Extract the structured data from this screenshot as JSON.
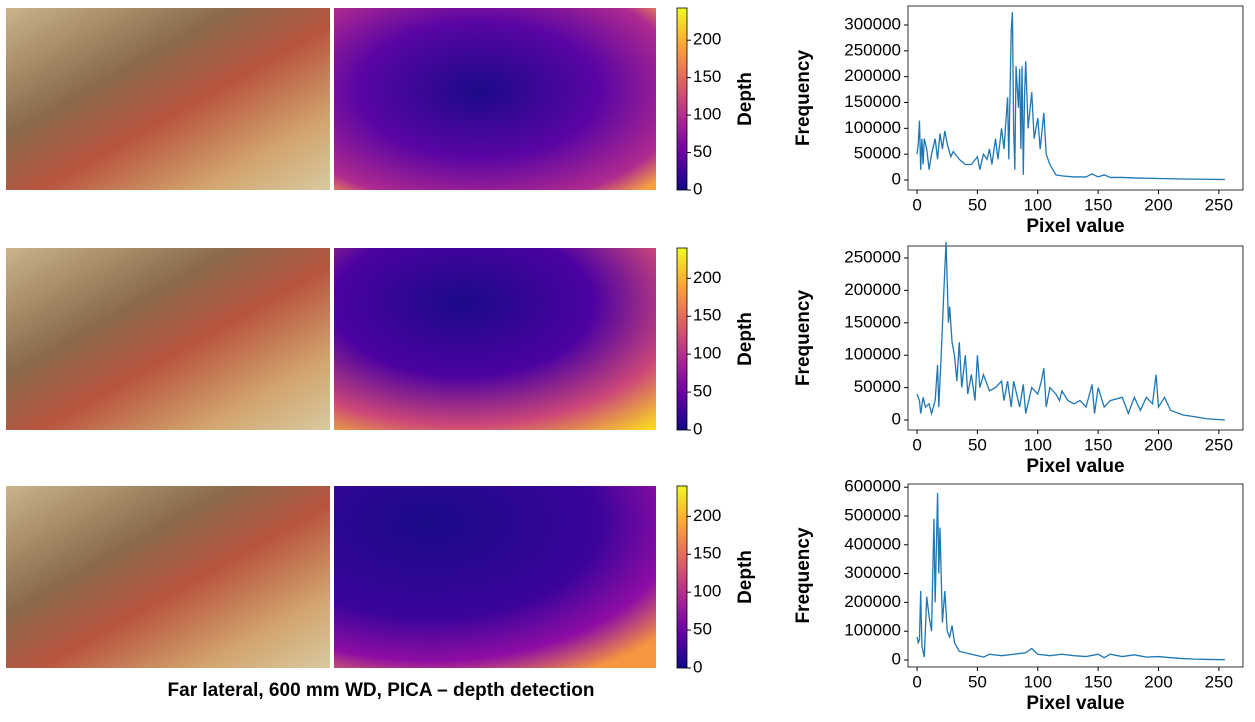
{
  "caption": "Far lateral, 600 mm WD, PICA – depth detection",
  "chart_data": [
    {
      "type": "line",
      "xlabel": "Pixel value",
      "ylabel": "Frequency",
      "color": "#1f77b4",
      "xlim": [
        -7.5,
        270
      ],
      "ylim": [
        -19300,
        336700
      ],
      "xticks": [
        0,
        50,
        100,
        150,
        200,
        250
      ],
      "yticks": [
        0,
        50000,
        100000,
        150000,
        200000,
        250000,
        300000
      ],
      "x": [
        0,
        1,
        2,
        3,
        4,
        5,
        6,
        8,
        10,
        12,
        15,
        17,
        19,
        21,
        23,
        25,
        28,
        30,
        35,
        40,
        45,
        50,
        52,
        55,
        58,
        60,
        62,
        65,
        67,
        70,
        72,
        75,
        76,
        78,
        79,
        80,
        81,
        82,
        84,
        85,
        86,
        87,
        88,
        89,
        90,
        92,
        95,
        97,
        100,
        102,
        105,
        107,
        110,
        115,
        120,
        130,
        140,
        145,
        150,
        155,
        160,
        170,
        180,
        200,
        220,
        255
      ],
      "values": [
        50000,
        70000,
        115000,
        20000,
        80000,
        30000,
        80000,
        60000,
        20000,
        50000,
        80000,
        40000,
        90000,
        60000,
        95000,
        70000,
        45000,
        55000,
        40000,
        30000,
        30000,
        45000,
        20000,
        50000,
        40000,
        60000,
        30000,
        80000,
        40000,
        100000,
        60000,
        160000,
        40000,
        290000,
        325000,
        100000,
        20000,
        220000,
        140000,
        215000,
        60000,
        220000,
        10000,
        160000,
        230000,
        100000,
        170000,
        80000,
        120000,
        60000,
        130000,
        50000,
        30000,
        10000,
        8000,
        6000,
        6000,
        12000,
        6000,
        10000,
        5000,
        5000,
        4000,
        3000,
        2000,
        1000
      ],
      "colorbar": {
        "label": "Depth",
        "lim": [
          0,
          243
        ],
        "ticks": [
          0,
          50,
          100,
          150,
          200
        ],
        "colormap": "plasma"
      }
    },
    {
      "type": "line",
      "xlabel": "Pixel value",
      "ylabel": "Frequency",
      "color": "#1f77b4",
      "xlim": [
        -7.5,
        270
      ],
      "ylim": [
        -15400,
        268500
      ],
      "xticks": [
        0,
        50,
        100,
        150,
        200,
        250
      ],
      "yticks": [
        0,
        50000,
        100000,
        150000,
        200000,
        250000
      ],
      "x": [
        0,
        2,
        3,
        5,
        7,
        10,
        12,
        15,
        17,
        18,
        20,
        22,
        24,
        26,
        27,
        29,
        31,
        33,
        35,
        37,
        40,
        42,
        45,
        48,
        50,
        52,
        55,
        60,
        65,
        70,
        72,
        75,
        78,
        80,
        85,
        88,
        90,
        95,
        100,
        103,
        105,
        107,
        110,
        115,
        118,
        120,
        125,
        130,
        135,
        140,
        145,
        147,
        150,
        155,
        160,
        170,
        175,
        180,
        185,
        190,
        195,
        198,
        200,
        205,
        210,
        220,
        230,
        240,
        255
      ],
      "values": [
        40000,
        30000,
        10000,
        35000,
        20000,
        25000,
        10000,
        30000,
        85000,
        20000,
        100000,
        190000,
        275000,
        150000,
        175000,
        120000,
        100000,
        60000,
        120000,
        50000,
        100000,
        40000,
        70000,
        30000,
        100000,
        50000,
        70000,
        45000,
        50000,
        60000,
        30000,
        60000,
        20000,
        60000,
        20000,
        55000,
        10000,
        50000,
        40000,
        60000,
        80000,
        20000,
        50000,
        40000,
        30000,
        45000,
        30000,
        25000,
        30000,
        20000,
        55000,
        10000,
        50000,
        20000,
        30000,
        35000,
        10000,
        35000,
        15000,
        35000,
        25000,
        70000,
        20000,
        35000,
        15000,
        8000,
        5000,
        2000,
        0
      ],
      "colorbar": {
        "label": "Depth",
        "lim": [
          0,
          240
        ],
        "ticks": [
          0,
          50,
          100,
          150,
          200
        ],
        "colormap": "plasma"
      }
    },
    {
      "type": "line",
      "xlabel": "Pixel value",
      "ylabel": "Frequency",
      "color": "#1f77b4",
      "xlim": [
        -7.5,
        270
      ],
      "ylim": [
        -24300,
        611000
      ],
      "xticks": [
        0,
        50,
        100,
        150,
        200,
        250
      ],
      "yticks": [
        0,
        100000,
        200000,
        300000,
        400000,
        500000,
        600000
      ],
      "x": [
        0,
        1,
        2,
        3,
        4,
        6,
        8,
        10,
        12,
        14,
        15,
        17,
        18,
        19,
        21,
        23,
        25,
        27,
        29,
        31,
        35,
        40,
        45,
        50,
        55,
        60,
        70,
        80,
        90,
        95,
        100,
        110,
        120,
        130,
        140,
        150,
        155,
        160,
        170,
        180,
        190,
        200,
        210,
        220,
        230,
        240,
        255
      ],
      "values": [
        80000,
        60000,
        70000,
        240000,
        50000,
        10000,
        220000,
        150000,
        100000,
        490000,
        200000,
        580000,
        300000,
        460000,
        130000,
        240000,
        100000,
        80000,
        120000,
        60000,
        30000,
        25000,
        20000,
        15000,
        10000,
        20000,
        15000,
        20000,
        25000,
        40000,
        20000,
        15000,
        20000,
        15000,
        12000,
        20000,
        8000,
        20000,
        12000,
        18000,
        10000,
        12000,
        8000,
        5000,
        3000,
        2000,
        1000
      ],
      "colorbar": {
        "label": "Depth",
        "lim": [
          0,
          240
        ],
        "ticks": [
          0,
          50,
          100,
          150,
          200
        ],
        "colormap": "plasma"
      }
    }
  ]
}
